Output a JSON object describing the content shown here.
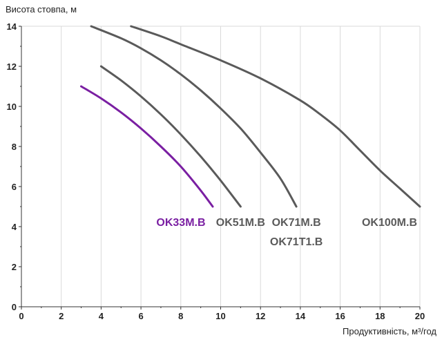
{
  "chart_data": {
    "type": "line",
    "ylabel": "Висота стовпа, м",
    "xlabel": "Продуктивність, м³/год",
    "xlim": [
      0,
      20
    ],
    "ylim": [
      0,
      14
    ],
    "xticks": [
      0,
      2,
      4,
      6,
      8,
      10,
      12,
      14,
      16,
      18,
      20
    ],
    "yticks": [
      0,
      2,
      4,
      6,
      8,
      10,
      12,
      14
    ],
    "grid": "vertical",
    "series": [
      {
        "name": "OK33M.B",
        "color": "#7a1fa2",
        "points": [
          [
            3.0,
            11.0
          ],
          [
            4.0,
            10.4
          ],
          [
            5.0,
            9.7
          ],
          [
            6.0,
            8.9
          ],
          [
            7.0,
            8.0
          ],
          [
            8.0,
            7.0
          ],
          [
            9.0,
            5.8
          ],
          [
            9.6,
            5.0
          ]
        ]
      },
      {
        "name": "OK51M.B",
        "color": "#5a5a5a",
        "points": [
          [
            4.0,
            12.0
          ],
          [
            5.0,
            11.3
          ],
          [
            6.0,
            10.5
          ],
          [
            7.0,
            9.6
          ],
          [
            8.0,
            8.6
          ],
          [
            9.0,
            7.5
          ],
          [
            10.0,
            6.3
          ],
          [
            11.0,
            5.0
          ]
        ]
      },
      {
        "name": "OK71M.B",
        "name2": "OK71T1.B",
        "color": "#5a5a5a",
        "points": [
          [
            3.5,
            14.0
          ],
          [
            5.0,
            13.4
          ],
          [
            6.0,
            12.9
          ],
          [
            7.0,
            12.3
          ],
          [
            8.0,
            11.6
          ],
          [
            9.0,
            10.8
          ],
          [
            10.0,
            9.9
          ],
          [
            11.0,
            8.9
          ],
          [
            12.0,
            7.7
          ],
          [
            13.0,
            6.4
          ],
          [
            13.8,
            5.0
          ]
        ]
      },
      {
        "name": "OK100M.B",
        "color": "#5a5a5a",
        "points": [
          [
            5.5,
            14.0
          ],
          [
            7.0,
            13.5
          ],
          [
            8.0,
            13.1
          ],
          [
            10.0,
            12.3
          ],
          [
            12.0,
            11.4
          ],
          [
            14.0,
            10.3
          ],
          [
            15.0,
            9.6
          ],
          [
            16.0,
            8.8
          ],
          [
            17.0,
            7.8
          ],
          [
            18.0,
            6.8
          ],
          [
            19.0,
            5.9
          ],
          [
            20.0,
            5.0
          ]
        ]
      }
    ]
  }
}
